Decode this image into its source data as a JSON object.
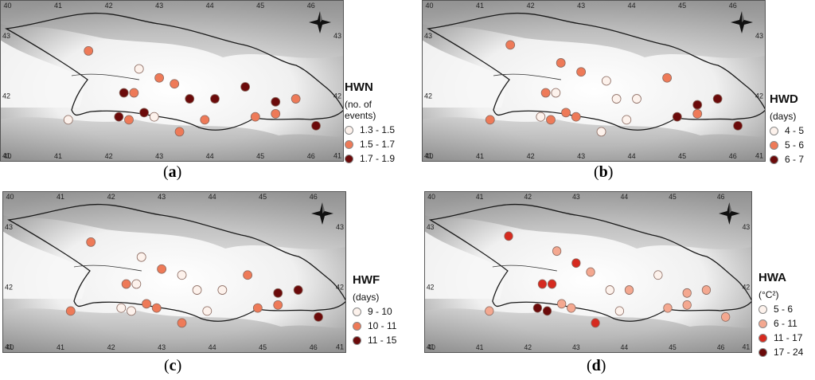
{
  "panels": [
    {
      "id": "a",
      "caption_letter": "a",
      "legend": {
        "title": "HWN",
        "unit": "(no. of events)",
        "classes": [
          {
            "label": "1.3 - 1.5",
            "color": "#fdf2ec"
          },
          {
            "label": "1.5 - 1.7",
            "color": "#ee7a58"
          },
          {
            "label": "1.7 - 1.9",
            "color": "#6b0a0a"
          }
        ]
      },
      "points": [
        [
          41.6,
          42.75,
          1
        ],
        [
          42.6,
          42.45,
          0
        ],
        [
          43.0,
          42.3,
          1
        ],
        [
          43.3,
          42.2,
          1
        ],
        [
          44.7,
          42.15,
          2
        ],
        [
          42.3,
          42.05,
          2
        ],
        [
          42.5,
          42.05,
          1
        ],
        [
          43.6,
          41.95,
          2
        ],
        [
          44.1,
          41.95,
          2
        ],
        [
          45.3,
          41.9,
          2
        ],
        [
          45.7,
          41.95,
          1
        ],
        [
          41.2,
          41.6,
          0
        ],
        [
          42.2,
          41.65,
          2
        ],
        [
          42.4,
          41.6,
          1
        ],
        [
          42.7,
          41.72,
          2
        ],
        [
          42.9,
          41.65,
          0
        ],
        [
          43.4,
          41.4,
          1
        ],
        [
          43.9,
          41.6,
          1
        ],
        [
          44.9,
          41.65,
          1
        ],
        [
          45.3,
          41.7,
          1
        ],
        [
          46.1,
          41.5,
          2
        ]
      ],
      "x_ticks": [
        "40",
        "41",
        "42",
        "43",
        "44",
        "45",
        "46"
      ],
      "y_ticks": [
        "43",
        "42",
        "41"
      ]
    },
    {
      "id": "b",
      "caption_letter": "b",
      "legend": {
        "title": "HWD",
        "unit": "(days)",
        "classes": [
          {
            "label": "4 - 5",
            "color": "#fdf2ec"
          },
          {
            "label": "5 - 6",
            "color": "#ee7a58"
          },
          {
            "label": "6 - 7",
            "color": "#6b0a0a"
          }
        ]
      },
      "points": [
        [
          41.6,
          42.85,
          1
        ],
        [
          42.6,
          42.55,
          1
        ],
        [
          43.0,
          42.4,
          1
        ],
        [
          43.5,
          42.25,
          0
        ],
        [
          44.7,
          42.3,
          1
        ],
        [
          42.3,
          42.05,
          1
        ],
        [
          42.5,
          42.05,
          0
        ],
        [
          43.7,
          41.95,
          0
        ],
        [
          44.1,
          41.95,
          0
        ],
        [
          45.3,
          41.85,
          2
        ],
        [
          45.7,
          41.95,
          2
        ],
        [
          41.2,
          41.6,
          1
        ],
        [
          42.2,
          41.65,
          0
        ],
        [
          42.4,
          41.6,
          1
        ],
        [
          42.7,
          41.72,
          1
        ],
        [
          42.9,
          41.65,
          1
        ],
        [
          43.4,
          41.4,
          0
        ],
        [
          43.9,
          41.6,
          0
        ],
        [
          44.9,
          41.65,
          2
        ],
        [
          45.3,
          41.7,
          1
        ],
        [
          46.1,
          41.5,
          2
        ]
      ],
      "x_ticks": [
        "40",
        "41",
        "42",
        "43",
        "44",
        "45",
        "46"
      ],
      "y_ticks": [
        "43",
        "42",
        "41"
      ]
    },
    {
      "id": "c",
      "caption_letter": "c",
      "legend": {
        "title": "HWF",
        "unit": "(days)",
        "classes": [
          {
            "label": "9 - 10",
            "color": "#fdf2ec"
          },
          {
            "label": "10 - 11",
            "color": "#ee7a58"
          },
          {
            "label": "11 - 15",
            "color": "#6b0a0a"
          }
        ]
      },
      "points": [
        [
          41.6,
          42.75,
          1
        ],
        [
          42.6,
          42.5,
          0
        ],
        [
          43.0,
          42.3,
          1
        ],
        [
          43.4,
          42.2,
          0
        ],
        [
          44.7,
          42.2,
          1
        ],
        [
          42.3,
          42.05,
          1
        ],
        [
          42.5,
          42.05,
          0
        ],
        [
          43.7,
          41.95,
          0
        ],
        [
          44.2,
          41.95,
          0
        ],
        [
          45.3,
          41.9,
          2
        ],
        [
          45.7,
          41.95,
          2
        ],
        [
          41.2,
          41.6,
          1
        ],
        [
          42.2,
          41.65,
          0
        ],
        [
          42.4,
          41.6,
          0
        ],
        [
          42.7,
          41.72,
          1
        ],
        [
          42.9,
          41.65,
          1
        ],
        [
          43.4,
          41.4,
          1
        ],
        [
          43.9,
          41.6,
          0
        ],
        [
          44.9,
          41.65,
          1
        ],
        [
          45.3,
          41.7,
          1
        ],
        [
          46.1,
          41.5,
          2
        ]
      ],
      "x_ticks": [
        "40",
        "41",
        "42",
        "43",
        "44",
        "45",
        "46"
      ],
      "y_ticks": [
        "43",
        "42",
        "41"
      ]
    },
    {
      "id": "d",
      "caption_letter": "d",
      "legend": {
        "title": "HWA",
        "unit": "(°C²)",
        "classes": [
          {
            "label": "5 - 6",
            "color": "#fdf2ec"
          },
          {
            "label": "6 - 11",
            "color": "#f4a890"
          },
          {
            "label": "11 - 17",
            "color": "#d62a1f"
          },
          {
            "label": "17 - 24",
            "color": "#6b0a0a"
          }
        ]
      },
      "points": [
        [
          41.6,
          42.85,
          2
        ],
        [
          42.6,
          42.6,
          1
        ],
        [
          43.0,
          42.4,
          2
        ],
        [
          43.3,
          42.25,
          1
        ],
        [
          44.7,
          42.2,
          0
        ],
        [
          42.3,
          42.05,
          2
        ],
        [
          42.5,
          42.05,
          2
        ],
        [
          43.7,
          41.95,
          0
        ],
        [
          44.1,
          41.95,
          1
        ],
        [
          45.3,
          41.9,
          1
        ],
        [
          45.7,
          41.95,
          1
        ],
        [
          41.2,
          41.6,
          1
        ],
        [
          42.2,
          41.65,
          3
        ],
        [
          42.4,
          41.6,
          3
        ],
        [
          42.7,
          41.72,
          1
        ],
        [
          42.9,
          41.65,
          1
        ],
        [
          43.4,
          41.4,
          2
        ],
        [
          43.9,
          41.6,
          0
        ],
        [
          44.9,
          41.65,
          1
        ],
        [
          45.3,
          41.7,
          1
        ],
        [
          46.1,
          41.5,
          1
        ]
      ],
      "x_ticks": [
        "40",
        "41",
        "42",
        "43",
        "44",
        "45",
        "46"
      ],
      "y_ticks": [
        "43",
        "42",
        "41"
      ]
    }
  ]
}
